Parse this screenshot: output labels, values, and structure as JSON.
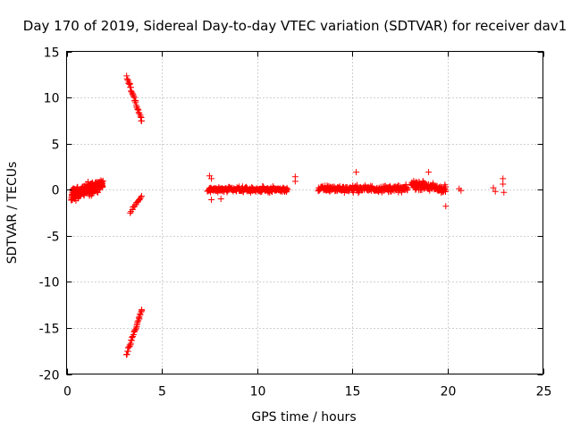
{
  "chart_data": {
    "type": "scatter",
    "title": "Day 170 of 2019, Sidereal Day-to-day VTEC variation (SDTVAR) for receiver dav1",
    "xlabel": "GPS time / hours",
    "ylabel": "SDTVAR / TECUs",
    "xlim": [
      0,
      25
    ],
    "ylim": [
      -20,
      15
    ],
    "xticks": [
      0,
      5,
      10,
      15,
      20,
      25
    ],
    "yticks": [
      -20,
      -15,
      -10,
      -5,
      0,
      5,
      10,
      15
    ],
    "xtick_labels": [
      "0",
      "5",
      "10",
      "15",
      "20",
      "25"
    ],
    "ytick_labels": [
      "-20",
      "-15",
      "-10",
      "-5",
      "0",
      "5",
      "10",
      "15"
    ],
    "grid": true,
    "marker": "+",
    "series": [
      {
        "name": "SDTVAR",
        "color": "#ff0000",
        "clusters": [
          {
            "x_range": [
              0.25,
              1.9
            ],
            "y_center": -0.6,
            "y_spread": 1.0,
            "y_trend": 1.2,
            "n": 260
          },
          {
            "x_range": [
              3.15,
              3.95
            ],
            "y_start": 12.3,
            "y_end": 7.5,
            "n": 34
          },
          {
            "x_range": [
              3.15,
              3.95
            ],
            "y_start": -17.9,
            "y_end": -13.0,
            "n": 34
          },
          {
            "x_range": [
              3.35,
              3.95
            ],
            "y_start": -2.5,
            "y_end": -0.6,
            "n": 14
          },
          {
            "x_range": [
              7.4,
              11.6
            ],
            "y_center": 0.0,
            "y_spread": 0.4,
            "y_trend": 0.0,
            "n": 240
          },
          {
            "x_range": [
              13.2,
              17.9
            ],
            "y_center": 0.1,
            "y_spread": 0.5,
            "y_trend": 0.0,
            "n": 260
          },
          {
            "x_range": [
              18.1,
              19.9
            ],
            "y_center": 0.6,
            "y_spread": 0.7,
            "y_trend": -0.6,
            "n": 120
          }
        ],
        "points": [
          {
            "x": 7.5,
            "y": 1.5
          },
          {
            "x": 7.6,
            "y": 1.2
          },
          {
            "x": 7.6,
            "y": -1.1
          },
          {
            "x": 8.1,
            "y": -1.0
          },
          {
            "x": 12.0,
            "y": 0.9
          },
          {
            "x": 12.0,
            "y": 1.4
          },
          {
            "x": 15.2,
            "y": 1.9
          },
          {
            "x": 19.0,
            "y": 1.9
          },
          {
            "x": 19.9,
            "y": -1.8
          },
          {
            "x": 20.6,
            "y": 0.1
          },
          {
            "x": 20.7,
            "y": -0.1
          },
          {
            "x": 22.4,
            "y": 0.2
          },
          {
            "x": 22.5,
            "y": -0.2
          },
          {
            "x": 22.9,
            "y": 1.2
          },
          {
            "x": 22.9,
            "y": 0.6
          },
          {
            "x": 22.95,
            "y": -0.3
          }
        ]
      }
    ]
  }
}
